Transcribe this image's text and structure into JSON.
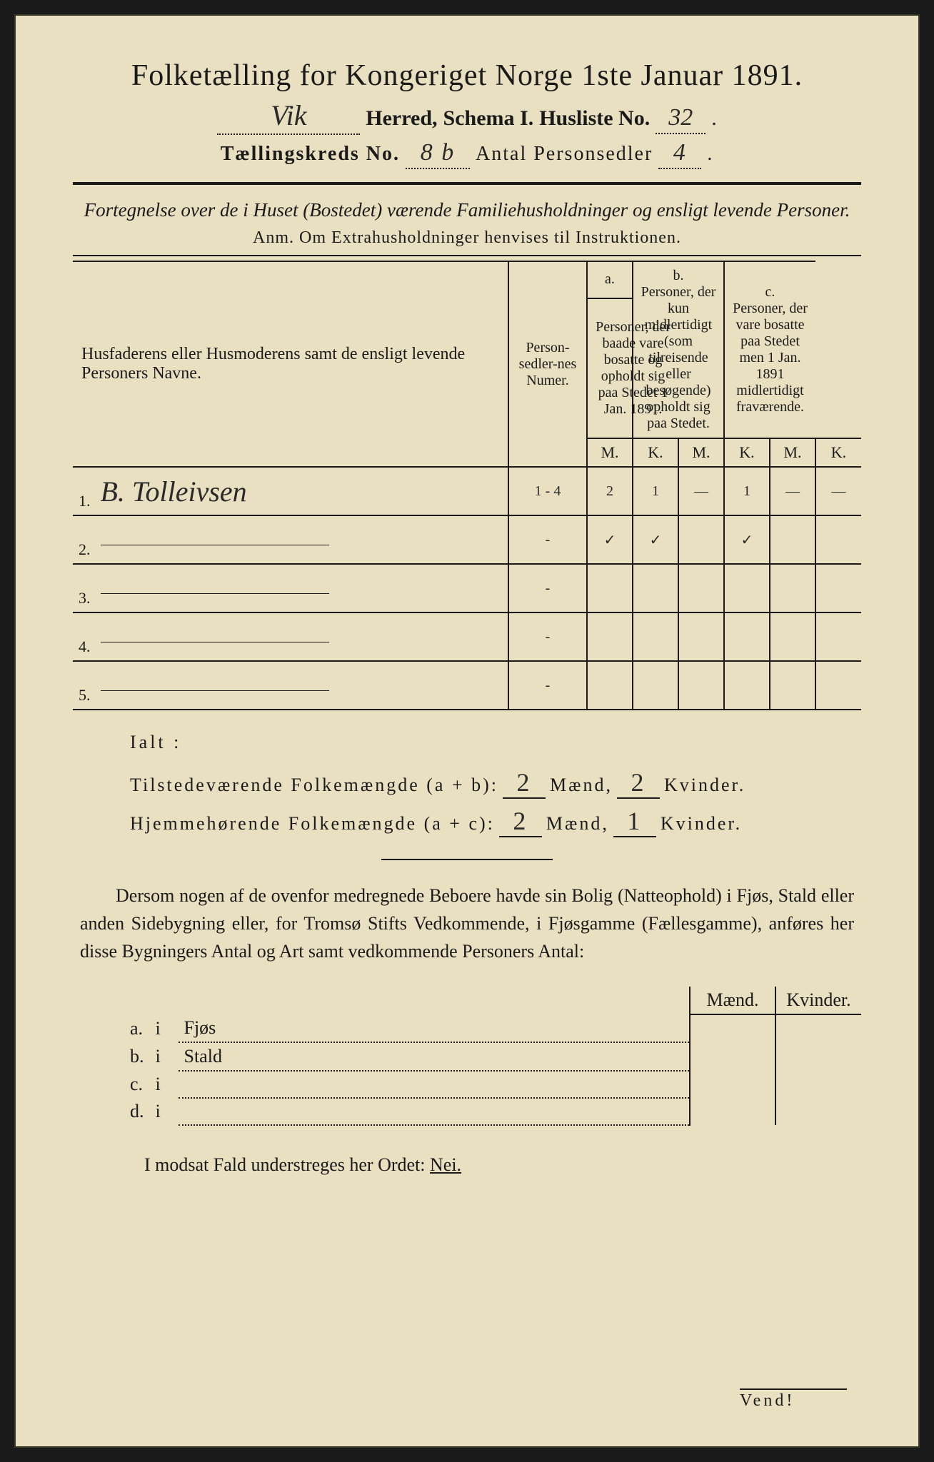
{
  "header": {
    "title_prefix": "Folketælling for Kongeriget Norge 1ste Januar 1891.",
    "herred_value": "Vik",
    "herred_label": "Herred,",
    "schema_label": "Schema I.",
    "husliste_label": "Husliste No.",
    "husliste_value": "32",
    "kreds_label": "Tællingskreds No.",
    "kreds_value": "8 b",
    "antal_label": "Antal Personsedler",
    "antal_value": "4"
  },
  "subtitle": "Fortegnelse over de i Huset (Bostedet) værende Familiehusholdninger og ensligt levende Personer.",
  "anm": "Anm. Om Extrahusholdninger henvises til Instruktionen.",
  "columns": {
    "names": "Husfaderens eller Husmoderens samt de ensligt levende Personers Navne.",
    "numer": "Person-sedler-nes Numer.",
    "a": "Personer, der baade vare bosatte og opholdt sig paa Stedet 1 Jan. 1891.",
    "b": "Personer, der kun midlertidigt (som tilreisende eller besøgende) opholdt sig paa Stedet.",
    "c": "Personer, der vare bosatte paa Stedet men 1 Jan. 1891 midlertidigt fraværende.",
    "a_label": "a.",
    "b_label": "b.",
    "c_label": "c.",
    "m": "M.",
    "k": "K."
  },
  "rows": [
    {
      "num": "1.",
      "name": "B. Tolleivsen",
      "numer": "1 - 4",
      "a_m": "2",
      "a_k": "1",
      "b_m": "—",
      "b_k": "1",
      "c_m": "—",
      "c_k": "—"
    },
    {
      "num": "2.",
      "name": "",
      "numer": "-",
      "a_m": "✓",
      "a_k": "✓",
      "b_m": "",
      "b_k": "✓",
      "c_m": "",
      "c_k": ""
    },
    {
      "num": "3.",
      "name": "",
      "numer": "-",
      "a_m": "",
      "a_k": "",
      "b_m": "",
      "b_k": "",
      "c_m": "",
      "c_k": ""
    },
    {
      "num": "4.",
      "name": "",
      "numer": "-",
      "a_m": "",
      "a_k": "",
      "b_m": "",
      "b_k": "",
      "c_m": "",
      "c_k": ""
    },
    {
      "num": "5.",
      "name": "",
      "numer": "-",
      "a_m": "",
      "a_k": "",
      "b_m": "",
      "b_k": "",
      "c_m": "",
      "c_k": ""
    }
  ],
  "totals": {
    "ialt": "Ialt :",
    "tilstede_label": "Tilstedeværende Folkemængde (a + b):",
    "tilstede_m": "2",
    "tilstede_k": "2",
    "hjemme_label": "Hjemmehørende Folkemængde (a + c):",
    "hjemme_m": "2",
    "hjemme_k": "1",
    "maend": "Mænd,",
    "kvinder": "Kvinder."
  },
  "paragraph": "Dersom nogen af de ovenfor medregnede Beboere havde sin Bolig (Natteophold) i Fjøs, Stald eller anden Sidebygning eller, for Tromsø Stifts Vedkommende, i Fjøsgamme (Fællesgamme), anføres her disse Bygningers Antal og Art samt vedkommende Personers Antal:",
  "building_table": {
    "maend": "Mænd.",
    "kvinder": "Kvinder.",
    "rows": [
      {
        "letter": "a.",
        "i": "i",
        "label": "Fjøs"
      },
      {
        "letter": "b.",
        "i": "i",
        "label": "Stald"
      },
      {
        "letter": "c.",
        "i": "i",
        "label": ""
      },
      {
        "letter": "d.",
        "i": "i",
        "label": ""
      }
    ]
  },
  "nei_line": "I modsat Fald understreges her Ordet:",
  "nei": "Nei.",
  "vend": "Vend!",
  "colors": {
    "paper": "#e8e0c0",
    "ink": "#1a1a1a",
    "handwriting": "#2a2a2a"
  }
}
